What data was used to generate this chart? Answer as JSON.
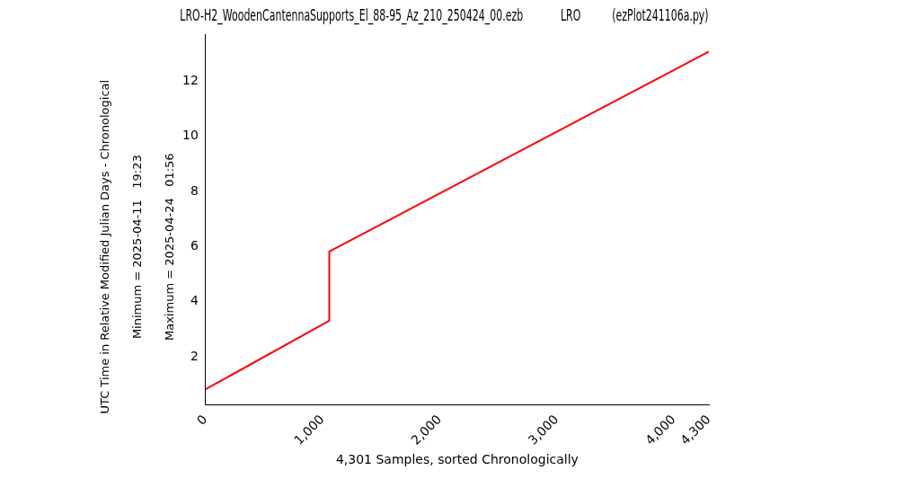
{
  "chart_data": {
    "type": "line",
    "title": "LRO-H2_WoodenCantennaSupports_El_88-95_Az_210_250424_00.ezb            LRO          (ezPlot241106a.py)",
    "xlabel": "4,301 Samples, sorted Chronologically",
    "annotations": [
      "UTC Time in Relative Modified Julian Days - Chronological",
      "Minimum = 2025-04-11   19:23",
      "Maximum = 2025-04-24   01:56"
    ],
    "series": [
      {
        "color": "#ff0000",
        "x": [
          0,
          1057,
          1057,
          4300
        ],
        "values": [
          0.82,
          3.31,
          5.82,
          13.08
        ]
      }
    ],
    "xlim": [
      0,
      4300
    ],
    "ylim": [
      0.24,
      13.7
    ],
    "xticks": [
      0,
      {
        "value": 1000,
        "label": "1,000"
      },
      {
        "value": 2000,
        "label": "2,000"
      },
      {
        "value": 3000,
        "label": "3,000"
      },
      {
        "value": 4000,
        "label": "4,000"
      },
      {
        "value": 4300,
        "label": "4,300"
      }
    ],
    "yticks": [
      2,
      4,
      6,
      8,
      10,
      12
    ],
    "grid": false,
    "legend": false,
    "marker": "none",
    "line_style": "solid"
  }
}
